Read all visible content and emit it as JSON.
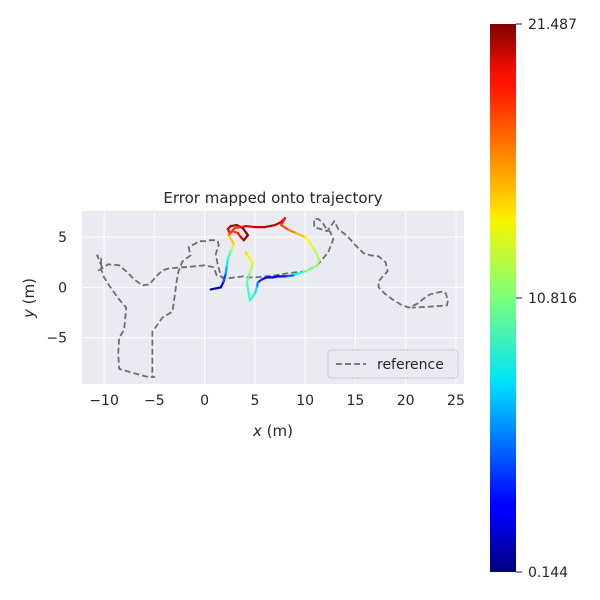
{
  "chart_data": {
    "type": "line",
    "title": "Error mapped onto trajectory",
    "xlabel_var": "x",
    "xlabel_unit": " (m)",
    "ylabel_var": "y",
    "ylabel_unit": " (m)",
    "xlim": [
      -12.2,
      25.8
    ],
    "ylim": [
      -9.6,
      7.6
    ],
    "xticks": [
      -10,
      -5,
      0,
      5,
      10,
      15,
      20,
      25
    ],
    "yticks": [
      -5,
      0,
      5
    ],
    "grid": true,
    "legend": {
      "position": "lower-right",
      "entries": [
        "reference"
      ]
    },
    "colormap": "jet",
    "colorbar": {
      "min": 0.144,
      "mid": 10.816,
      "max": 21.487,
      "ticks": [
        "0.144",
        "10.816",
        "21.487"
      ]
    },
    "series": [
      {
        "name": "reference",
        "style": "dashed",
        "color": "#6e6e6e",
        "x": [
          2.0,
          1.6,
          1.3,
          1.1,
          1.4,
          1.3,
          1.2,
          0.6,
          0.0,
          -0.5,
          -1.6,
          -1.4,
          -2.2,
          -2.6,
          -2.8,
          -3.0,
          -3.2,
          -4.2,
          -5.2,
          -5.2,
          -5.0,
          -5.6,
          -6.0,
          -7.5,
          -8.5,
          -8.6,
          -8.5,
          -8.0,
          -7.8,
          -8.5,
          -9.5,
          -10.0,
          -10.3,
          -10.3,
          -10.7,
          -10.2,
          -10.5,
          -9.6,
          -8.5,
          -7.8,
          -7.0,
          -6.2,
          -5.5,
          -4.9,
          -4.2,
          -3.5,
          -2.2,
          -1.0,
          0.0,
          0.9,
          1.2,
          2.2,
          3.1,
          3.8,
          4.4,
          5.0,
          6.0,
          7.0,
          8.2,
          9.0,
          10.0,
          11.2,
          12.3,
          12.8,
          12.5,
          12.0,
          11.7,
          11.3,
          10.9,
          10.9,
          12.2,
          12.9,
          13.3,
          14.2,
          15.0,
          15.8,
          16.5,
          17.3,
          18.0,
          18.2,
          17.8,
          17.3,
          17.3,
          17.9,
          18.7,
          19.5,
          20.3,
          21.2,
          21.8,
          22.4,
          23.2,
          23.7,
          24.0,
          24.2,
          24.1,
          22.5,
          20.6
        ],
        "y": [
          0.7,
          1.2,
          2.3,
          3.3,
          4.2,
          4.6,
          4.7,
          4.7,
          4.6,
          4.6,
          4.0,
          3.2,
          2.6,
          1.6,
          0.5,
          -1.0,
          -2.4,
          -3.0,
          -4.4,
          -8.8,
          -8.9,
          -8.9,
          -8.8,
          -8.4,
          -8.1,
          -6.6,
          -5.0,
          -4.2,
          -2.0,
          -1.2,
          0.2,
          1.0,
          1.8,
          2.9,
          3.2,
          2.0,
          1.7,
          2.3,
          2.2,
          1.6,
          0.8,
          0.2,
          0.3,
          1.0,
          1.7,
          1.9,
          2.0,
          2.1,
          2.2,
          2.0,
          1.2,
          0.9,
          1.0,
          1.1,
          1.0,
          1.0,
          1.1,
          1.2,
          1.4,
          1.5,
          1.6,
          2.2,
          3.5,
          4.8,
          5.5,
          6.0,
          6.5,
          6.8,
          6.8,
          6.0,
          5.6,
          6.6,
          5.8,
          5.1,
          4.2,
          3.4,
          3.2,
          3.1,
          2.5,
          1.6,
          1.2,
          0.6,
          0.0,
          -0.6,
          -1.2,
          -1.7,
          -2.0,
          -1.6,
          -1.1,
          -0.7,
          -0.5,
          -0.4,
          -0.6,
          -1.3,
          -1.8,
          -1.9,
          -2.0
        ]
      },
      {
        "name": "",
        "style": "solid-colormapped",
        "x": [
          0.6,
          1.6,
          1.9,
          2.1,
          2.2,
          2.3,
          2.5,
          2.7,
          2.9,
          2.4,
          2.8,
          3.3,
          3.6,
          3.9,
          4.3,
          3.8,
          3.2,
          2.6,
          2.3,
          2.5,
          3.0,
          3.6,
          4.1,
          5.0,
          6.0,
          7.0,
          7.6,
          8.0,
          7.6,
          8.4,
          9.1,
          10.0,
          10.5,
          10.9,
          11.2,
          11.4,
          11.2,
          10.5,
          9.7,
          8.8,
          8.0,
          7.3,
          6.8,
          6.2,
          5.7,
          5.3,
          5.2,
          5.0,
          4.5,
          4.2,
          4.5,
          4.8,
          4.4,
          4.2,
          4.1
        ],
        "y": [
          -0.2,
          0.0,
          0.6,
          1.4,
          2.1,
          2.8,
          3.4,
          3.8,
          4.3,
          5.2,
          5.6,
          5.4,
          5.0,
          4.7,
          5.2,
          5.9,
          6.2,
          6.1,
          5.8,
          5.4,
          5.9,
          6.0,
          6.1,
          6.0,
          6.0,
          6.2,
          6.5,
          6.9,
          6.2,
          5.7,
          5.4,
          5.0,
          4.4,
          3.8,
          3.2,
          2.7,
          2.2,
          1.8,
          1.5,
          1.2,
          1.1,
          1.1,
          1.0,
          1.0,
          0.8,
          0.5,
          0.0,
          -0.6,
          -1.3,
          0.5,
          1.5,
          2.4,
          3.0,
          3.3,
          3.5
        ],
        "error": [
          0.8,
          1.5,
          3.5,
          5.5,
          7.0,
          8.5,
          9.8,
          11.0,
          13.5,
          15.5,
          17.0,
          18.2,
          19.0,
          20.6,
          21.3,
          21.4,
          21.2,
          20.5,
          19.8,
          18.0,
          17.2,
          18.2,
          19.2,
          19.8,
          20.1,
          20.4,
          19.6,
          18.8,
          17.8,
          16.5,
          15.6,
          14.2,
          13.0,
          12.3,
          11.8,
          11.2,
          11.3,
          11.0,
          10.5,
          6.0,
          3.5,
          2.5,
          1.6,
          2.2,
          3.0,
          4.5,
          6.5,
          8.5,
          9.2,
          9.5,
          11.0,
          12.5,
          13.5,
          14.0,
          14.5
        ]
      }
    ]
  }
}
